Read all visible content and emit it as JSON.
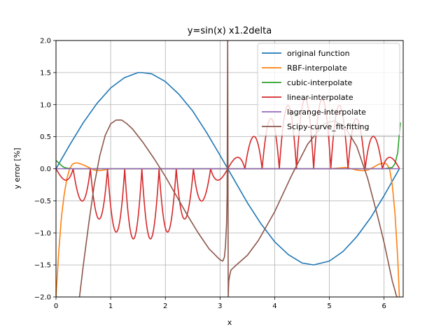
{
  "chart_data": {
    "type": "line",
    "title": "y=sin(x) x1.2delta",
    "xlabel": "x",
    "ylabel": "y error [%]",
    "xlim": [
      0,
      6.35
    ],
    "ylim": [
      -2.0,
      2.0
    ],
    "xticks": [
      0,
      1,
      2,
      3,
      4,
      5,
      6
    ],
    "xtick_labels": [
      "0",
      "1",
      "2",
      "3",
      "4",
      "5",
      "6"
    ],
    "yticks": [
      -2.0,
      -1.5,
      -1.0,
      -0.5,
      0.0,
      0.5,
      1.0,
      1.5,
      2.0
    ],
    "ytick_labels": [
      "−2.0",
      "−1.5",
      "−1.0",
      "−0.5",
      "0.0",
      "0.5",
      "1.0",
      "1.5",
      "2.0"
    ],
    "grid": true,
    "legend_position": "top-right",
    "series": [
      {
        "name": "original function",
        "color": "#1f77b4",
        "x": [
          0,
          0.25,
          0.5,
          0.75,
          1.0,
          1.25,
          1.5,
          1.571,
          1.75,
          2.0,
          2.25,
          2.5,
          2.75,
          3.0,
          3.25,
          3.5,
          3.75,
          4.0,
          4.25,
          4.5,
          4.712,
          5.0,
          5.25,
          5.5,
          5.75,
          6.0,
          6.28
        ],
        "y": [
          0,
          0.37,
          0.72,
          1.02,
          1.26,
          1.42,
          1.5,
          1.5,
          1.48,
          1.36,
          1.16,
          0.9,
          0.57,
          0.21,
          -0.16,
          -0.53,
          -0.86,
          -1.14,
          -1.34,
          -1.47,
          -1.5,
          -1.44,
          -1.29,
          -1.06,
          -0.77,
          -0.42,
          0
        ]
      },
      {
        "name": "RBF-interpolate",
        "color": "#ff7f0e",
        "x": [
          0.0,
          0.05,
          0.1,
          0.15,
          0.2,
          0.25,
          0.3,
          0.35,
          0.4,
          0.5,
          0.6,
          0.7,
          0.8,
          1.0,
          1.5,
          2.0,
          2.5,
          3.0,
          3.5,
          4.0,
          4.5,
          5.0,
          5.3,
          5.5,
          5.6,
          5.7,
          5.8,
          5.9,
          6.0,
          6.05,
          6.1,
          6.15,
          6.2,
          6.25,
          6.28
        ],
        "y": [
          -2.0,
          -1.3,
          -0.75,
          -0.4,
          -0.15,
          0.0,
          0.07,
          0.09,
          0.09,
          0.06,
          0.02,
          -0.02,
          -0.03,
          0.0,
          0.0,
          0.0,
          0.0,
          0.0,
          0.0,
          0.0,
          0.0,
          0.0,
          0.02,
          -0.02,
          -0.03,
          -0.02,
          0.02,
          0.07,
          0.09,
          0.07,
          0.0,
          -0.25,
          -0.7,
          -1.4,
          -2.0
        ]
      },
      {
        "name": "cubic-interpolate",
        "color": "#2ca02c",
        "x": [
          0.0,
          0.05,
          0.1,
          0.15,
          0.2,
          0.3,
          0.5,
          1.0,
          2.0,
          3.0,
          4.0,
          5.0,
          6.0,
          6.15,
          6.2,
          6.25,
          6.28,
          6.3
        ],
        "y": [
          0.13,
          0.09,
          0.05,
          0.02,
          0.01,
          0.0,
          0.0,
          0.0,
          0.0,
          0.0,
          0.0,
          0.0,
          0.0,
          0.02,
          0.08,
          0.25,
          0.55,
          0.72
        ]
      },
      {
        "name": "linear-interpolate",
        "color": "#d62728",
        "x": [],
        "y": []
      },
      {
        "name": "lagrange-interpolate",
        "color": "#9467bd",
        "x": [
          0,
          1,
          2,
          3,
          4,
          5,
          6,
          6.28
        ],
        "y": [
          0,
          0,
          0,
          0,
          0,
          0,
          0,
          0
        ]
      },
      {
        "name": "Scipy-curve_fit-fitting",
        "color": "#8c564b",
        "x": [
          0.43,
          0.5,
          0.6,
          0.7,
          0.8,
          0.9,
          1.0,
          1.1,
          1.2,
          1.3,
          1.4,
          1.6,
          1.8,
          2.0,
          2.2,
          2.4,
          2.6,
          2.8,
          3.0,
          3.05,
          3.08,
          3.1,
          3.12,
          3.13,
          3.14,
          3.15,
          3.16,
          3.18,
          3.2,
          3.25,
          3.3,
          3.5,
          3.7,
          4.0,
          4.3,
          4.6,
          4.9,
          5.1,
          5.3,
          5.5,
          5.7,
          5.9,
          6.0,
          6.1,
          6.15,
          6.2,
          6.22,
          6.24
        ],
        "y": [
          -2.0,
          -1.5,
          -0.85,
          -0.25,
          0.2,
          0.52,
          0.7,
          0.76,
          0.76,
          0.7,
          0.62,
          0.4,
          0.15,
          -0.12,
          -0.42,
          -0.72,
          -1.0,
          -1.25,
          -1.42,
          -1.44,
          -1.38,
          -1.2,
          -0.85,
          -0.4,
          2.0,
          -2.0,
          -1.75,
          -1.65,
          -1.58,
          -1.54,
          -1.5,
          -1.35,
          -1.12,
          -0.67,
          -0.12,
          0.38,
          0.7,
          0.75,
          0.63,
          0.35,
          -0.15,
          -0.8,
          -1.15,
          -1.55,
          -1.75,
          -1.9,
          -1.97,
          -2.0
        ]
      }
    ]
  }
}
